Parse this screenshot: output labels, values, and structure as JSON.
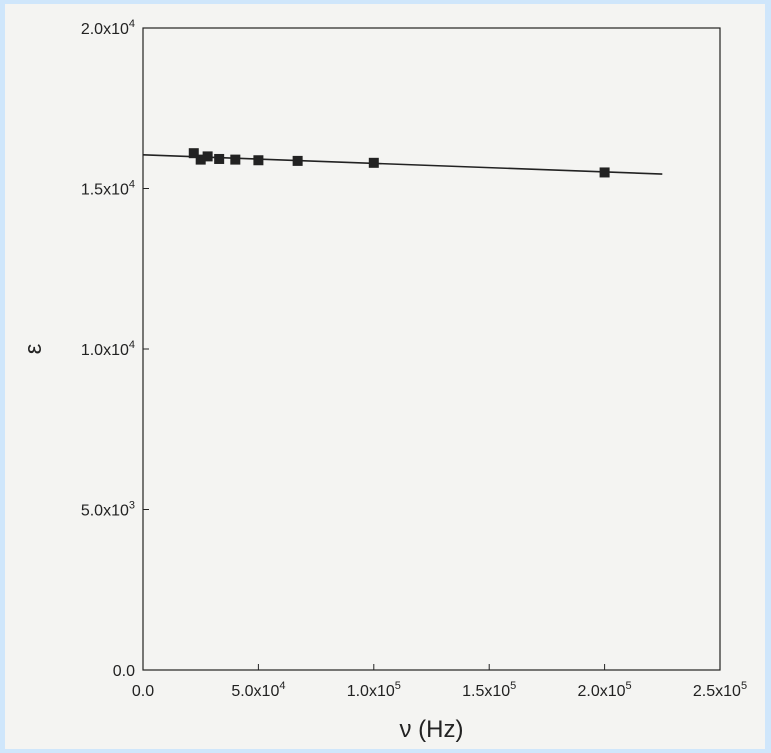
{
  "chart_data": {
    "type": "scatter",
    "title": "",
    "xlabel": "ν (Hz)",
    "ylabel": "ε",
    "xlim": [
      0,
      250000
    ],
    "ylim": [
      0,
      20000
    ],
    "grid": false,
    "x_ticks": [
      {
        "value": 0,
        "mantissa": "0.0",
        "exp": ""
      },
      {
        "value": 50000,
        "mantissa": "5.0x10",
        "exp": "4"
      },
      {
        "value": 100000,
        "mantissa": "1.0x10",
        "exp": "5"
      },
      {
        "value": 150000,
        "mantissa": "1.5x10",
        "exp": "5"
      },
      {
        "value": 200000,
        "mantissa": "2.0x10",
        "exp": "5"
      },
      {
        "value": 250000,
        "mantissa": "2.5x10",
        "exp": "5"
      }
    ],
    "y_ticks": [
      {
        "value": 0,
        "mantissa": "0.0",
        "exp": ""
      },
      {
        "value": 5000,
        "mantissa": "5.0x10",
        "exp": "3"
      },
      {
        "value": 10000,
        "mantissa": "1.0x10",
        "exp": "4"
      },
      {
        "value": 15000,
        "mantissa": "1.5x10",
        "exp": "4"
      },
      {
        "value": 20000,
        "mantissa": "2.0x10",
        "exp": "4"
      }
    ],
    "series": [
      {
        "marker": "square",
        "color": "#222222",
        "points": [
          {
            "x": 22000,
            "y": 16100
          },
          {
            "x": 25000,
            "y": 15900
          },
          {
            "x": 28000,
            "y": 16000
          },
          {
            "x": 33000,
            "y": 15920
          },
          {
            "x": 40000,
            "y": 15900
          },
          {
            "x": 50000,
            "y": 15880
          },
          {
            "x": 67000,
            "y": 15860
          },
          {
            "x": 100000,
            "y": 15800
          },
          {
            "x": 200000,
            "y": 15500
          }
        ]
      }
    ],
    "fit_line": {
      "x": [
        0,
        225000
      ],
      "y": [
        16050,
        15450
      ],
      "color": "#222222"
    }
  }
}
